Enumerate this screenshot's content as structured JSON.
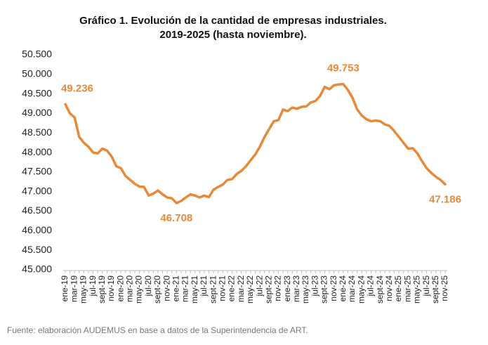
{
  "chart_data": {
    "type": "line",
    "title": [
      "Gráfico 1. Evolución de la cantidad de empresas industriales.",
      "2019-2025 (hasta noviembre)."
    ],
    "categories": [
      "ene-19",
      null,
      "mar-19",
      null,
      "may-19",
      null,
      "jul-19",
      null,
      "sept-19",
      null,
      "nov-19",
      null,
      "ene-20",
      null,
      "mar-20",
      null,
      "may-20",
      null,
      "jul-20",
      null,
      "sept-20",
      null,
      "nov-20",
      null,
      "ene-21",
      null,
      "mar-21",
      null,
      "may-21",
      null,
      "jul-21",
      null,
      "sept-21",
      null,
      "nov-21",
      null,
      "ene-22",
      null,
      "mar-22",
      null,
      "may-22",
      null,
      "jul-22",
      null,
      "sept-22",
      null,
      "nov-22",
      null,
      "ene-23",
      null,
      "mar-23",
      null,
      "may-23",
      null,
      "jul-23",
      null,
      "sept-23",
      null,
      "nov-23",
      null,
      "ene-24",
      null,
      "mar-24",
      null,
      "may-24",
      null,
      "jul-24",
      null,
      "sept-24",
      null,
      "nov-24",
      null,
      "ene-25",
      null,
      "mar-25",
      null,
      "may-25",
      null,
      "jul-25",
      null,
      "sept-25",
      null,
      "nov-25"
    ],
    "values": [
      49236,
      49000,
      48900,
      48400,
      48250,
      48150,
      48000,
      47980,
      48100,
      48050,
      47900,
      47650,
      47600,
      47400,
      47300,
      47200,
      47130,
      47120,
      46900,
      46950,
      47030,
      46930,
      46850,
      46830,
      46708,
      46760,
      46850,
      46930,
      46900,
      46850,
      46900,
      46860,
      47050,
      47120,
      47180,
      47300,
      47320,
      47450,
      47530,
      47650,
      47800,
      47950,
      48150,
      48400,
      48600,
      48800,
      48830,
      49100,
      49060,
      49150,
      49120,
      49170,
      49180,
      49280,
      49320,
      49450,
      49680,
      49620,
      49720,
      49740,
      49753,
      49600,
      49400,
      49100,
      48950,
      48850,
      48800,
      48820,
      48800,
      48720,
      48680,
      48550,
      48400,
      48250,
      48100,
      48110,
      47980,
      47780,
      47600,
      47480,
      47380,
      47300,
      47186
    ],
    "value_labels": [
      "49.236",
      null,
      null,
      null,
      null,
      null,
      null,
      null,
      null,
      null,
      null,
      null,
      null,
      null,
      null,
      null,
      null,
      null,
      null,
      null,
      null,
      null,
      null,
      null,
      "46.708",
      null,
      null,
      null,
      null,
      null,
      null,
      null,
      null,
      null,
      null,
      null,
      null,
      null,
      null,
      null,
      null,
      null,
      null,
      null,
      null,
      null,
      null,
      null,
      null,
      null,
      null,
      null,
      null,
      null,
      null,
      null,
      null,
      null,
      null,
      null,
      "49.753",
      null,
      null,
      null,
      null,
      null,
      null,
      null,
      null,
      null,
      null,
      null,
      null,
      null,
      null,
      null,
      null,
      null,
      null,
      null,
      null,
      null,
      "47.186"
    ],
    "color": "#e8893a",
    "ylim": [
      45000,
      50500
    ],
    "yticks": [
      {
        "value": 45000,
        "label": "45.000"
      },
      {
        "value": 45500,
        "label": "45.500"
      },
      {
        "value": 46000,
        "label": "46.000"
      },
      {
        "value": 46500,
        "label": "46.500"
      },
      {
        "value": 47000,
        "label": "47.000"
      },
      {
        "value": 47500,
        "label": "47.500"
      },
      {
        "value": 48000,
        "label": "48.000"
      },
      {
        "value": 48500,
        "label": "48.500"
      },
      {
        "value": 49000,
        "label": "49.000"
      },
      {
        "value": 49500,
        "label": "49.500"
      },
      {
        "value": 50000,
        "label": "50.000"
      },
      {
        "value": 50500,
        "label": "50.500"
      }
    ],
    "grid": false,
    "source": "Fuente: elaboración AUDEMUS en base a datos de la Superintendencia de ART."
  }
}
